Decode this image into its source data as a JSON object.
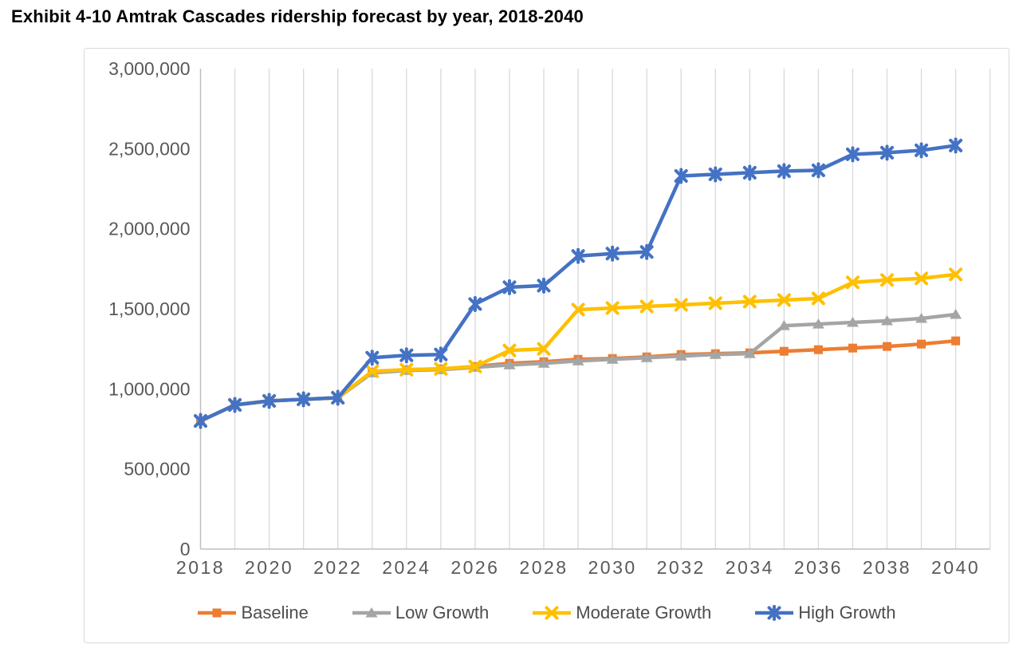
{
  "page_title": "Exhibit 4-10 Amtrak Cascades ridership forecast by year, 2018-2040",
  "chart_data": {
    "type": "line",
    "title": "Exhibit 4-10 Amtrak Cascades ridership forecast by year, 2018-2040",
    "x": [
      2018,
      2019,
      2020,
      2021,
      2022,
      2023,
      2024,
      2025,
      2026,
      2027,
      2028,
      2029,
      2030,
      2031,
      2032,
      2033,
      2034,
      2035,
      2036,
      2037,
      2038,
      2039,
      2040
    ],
    "x_tick_labels": [
      "2018",
      "2020",
      "2022",
      "2024",
      "2026",
      "2028",
      "2030",
      "2032",
      "2034",
      "2036",
      "2038",
      "2040"
    ],
    "y_tick_labels": [
      "0",
      "500,000",
      "1,000,000",
      "1,500,000",
      "2,000,000",
      "2,500,000",
      "3,000,000"
    ],
    "ylim": [
      0,
      3000000
    ],
    "y_tick_step": 500000,
    "grid": "vertical-only",
    "legend_position": "bottom",
    "series": [
      {
        "name": "Baseline",
        "color": "#ED7D31",
        "marker": "square",
        "values": [
          800000,
          900000,
          925000,
          935000,
          945000,
          1105000,
          1120000,
          1125000,
          1140000,
          1160000,
          1170000,
          1185000,
          1190000,
          1200000,
          1215000,
          1220000,
          1225000,
          1235000,
          1245000,
          1255000,
          1265000,
          1280000,
          1300000
        ]
      },
      {
        "name": "Low Growth",
        "color": "#A5A5A5",
        "marker": "triangle",
        "values": [
          800000,
          900000,
          925000,
          935000,
          945000,
          1100000,
          1115000,
          1120000,
          1135000,
          1150000,
          1160000,
          1175000,
          1185000,
          1195000,
          1205000,
          1215000,
          1220000,
          1395000,
          1405000,
          1415000,
          1425000,
          1440000,
          1465000
        ]
      },
      {
        "name": "Moderate Growth",
        "color": "#FFC000",
        "marker": "x",
        "values": [
          800000,
          900000,
          925000,
          935000,
          945000,
          1110000,
          1120000,
          1125000,
          1140000,
          1240000,
          1250000,
          1495000,
          1505000,
          1515000,
          1525000,
          1535000,
          1545000,
          1555000,
          1565000,
          1665000,
          1680000,
          1690000,
          1715000
        ]
      },
      {
        "name": "High Growth",
        "color": "#4472C4",
        "marker": "asterisk",
        "values": [
          800000,
          900000,
          925000,
          935000,
          945000,
          1195000,
          1210000,
          1215000,
          1530000,
          1635000,
          1645000,
          1830000,
          1845000,
          1855000,
          2330000,
          2340000,
          2350000,
          2360000,
          2365000,
          2465000,
          2475000,
          2490000,
          2520000
        ]
      }
    ],
    "colors": {
      "gridline": "#D9D9D9",
      "axis_line": "#BFBFBF",
      "tick_text": "#595959",
      "legend_text": "#4D4D4D",
      "title_text": "#000000",
      "chart_border": "#D9D9D9",
      "background": "#FFFFFF"
    }
  }
}
